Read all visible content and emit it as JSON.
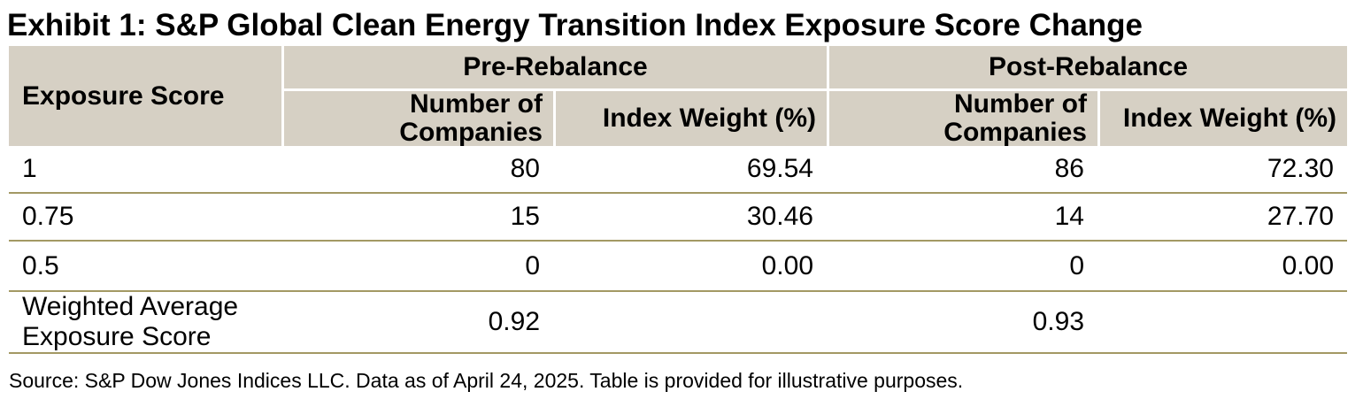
{
  "title": "Exhibit 1: S&P Global Clean Energy Transition Index Exposure Score Change",
  "table": {
    "corner_header": "Exposure Score",
    "groups": [
      {
        "label": "Pre-Rebalance",
        "columns": [
          "Number of Companies",
          "Index Weight (%)"
        ]
      },
      {
        "label": "Post-Rebalance",
        "columns": [
          "Number of Companies",
          "Index Weight (%)"
        ]
      }
    ],
    "rows": [
      {
        "label": "1",
        "pre_companies": "80",
        "pre_weight": "69.54",
        "post_companies": "86",
        "post_weight": "72.30"
      },
      {
        "label": "0.75",
        "pre_companies": "15",
        "pre_weight": "30.46",
        "post_companies": "14",
        "post_weight": "27.70"
      },
      {
        "label": "0.5",
        "pre_companies": "0",
        "pre_weight": "0.00",
        "post_companies": "0",
        "post_weight": "0.00"
      },
      {
        "label": "Weighted Average Exposure Score",
        "pre_companies": "0.92",
        "pre_weight": "",
        "post_companies": "0.93",
        "post_weight": ""
      }
    ]
  },
  "chart_data": {
    "type": "table",
    "title": "Exhibit 1: S&P Global Clean Energy Transition Index Exposure Score Change",
    "row_header": "Exposure Score",
    "column_groups": [
      "Pre-Rebalance",
      "Post-Rebalance"
    ],
    "columns": [
      "Exposure Score",
      "Pre-Rebalance Number of Companies",
      "Pre-Rebalance Index Weight (%)",
      "Post-Rebalance Number of Companies",
      "Post-Rebalance Index Weight (%)"
    ],
    "rows": [
      [
        "1",
        80,
        69.54,
        86,
        72.3
      ],
      [
        "0.75",
        15,
        30.46,
        14,
        27.7
      ],
      [
        "0.5",
        0,
        0.0,
        0,
        0.0
      ],
      [
        "Weighted Average Exposure Score",
        0.92,
        null,
        0.93,
        null
      ]
    ]
  },
  "source_note": "Source: S&P Dow Jones Indices LLC. Data as of April 24, 2025. Table is provided for illustrative purposes.",
  "colors": {
    "header_bg": "#d6d0c4",
    "row_divider": "#a39964",
    "text": "#000000"
  }
}
